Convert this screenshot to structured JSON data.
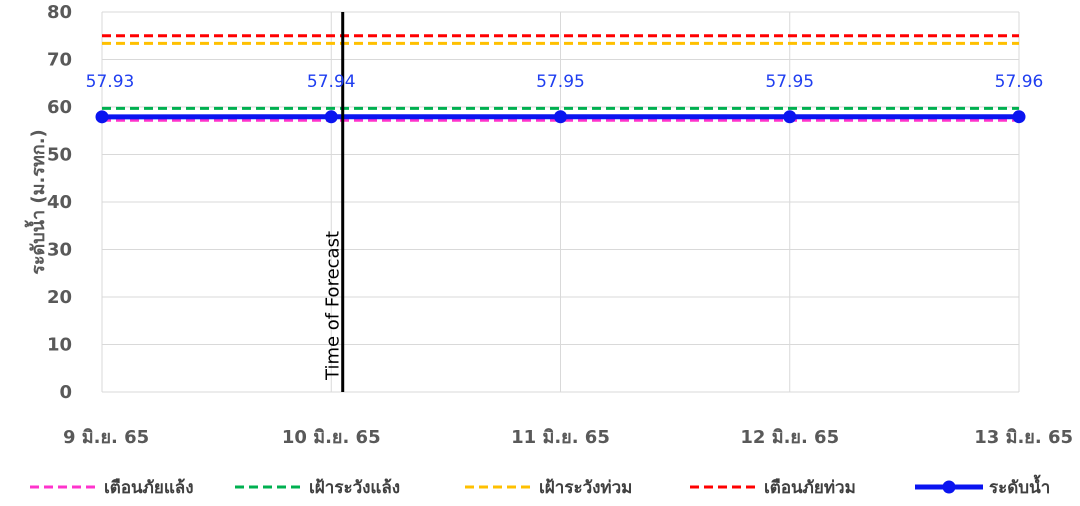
{
  "chart_data": {
    "type": "line",
    "title": "",
    "ylabel": "ระดับน้ำ (ม.รทก.)",
    "xlabel": "",
    "ylim": [
      0,
      80
    ],
    "yticks": [
      0,
      10,
      20,
      30,
      40,
      50,
      60,
      70,
      80
    ],
    "grid": true,
    "legend_position": "bottom",
    "categories": [
      "9 มิ.ย. 65",
      "10 มิ.ย. 65",
      "11 มิ.ย. 65",
      "12 มิ.ย. 65",
      "13 มิ.ย. 65"
    ],
    "series": [
      {
        "name": "เตือนภัยแล้ง",
        "values": [
          57.2,
          57.2,
          57.2,
          57.2,
          57.2
        ],
        "color": "#ff33cc",
        "style": "dashed"
      },
      {
        "name": "เฝ้าระวังแล้ง",
        "values": [
          59.7,
          59.7,
          59.7,
          59.7,
          59.7
        ],
        "color": "#00b050",
        "style": "dashed"
      },
      {
        "name": "เฝ้าระวังท่วม",
        "values": [
          73.4,
          73.4,
          73.4,
          73.4,
          73.4
        ],
        "color": "#ffc000",
        "style": "dashed"
      },
      {
        "name": "เตือนภัยท่วม",
        "values": [
          75.0,
          75.0,
          75.0,
          75.0,
          75.0
        ],
        "color": "#ff0000",
        "style": "dashed"
      },
      {
        "name": "ระดับน้ำ",
        "values": [
          57.93,
          57.94,
          57.95,
          57.95,
          57.96
        ],
        "color": "#0a14f0",
        "style": "solid-markers",
        "data_labels": [
          "57.93",
          "57.94",
          "57.95",
          "57.95",
          "57.96"
        ]
      }
    ],
    "annotation": {
      "text": "Time of Forecast",
      "x_category_index": 1.05
    }
  }
}
